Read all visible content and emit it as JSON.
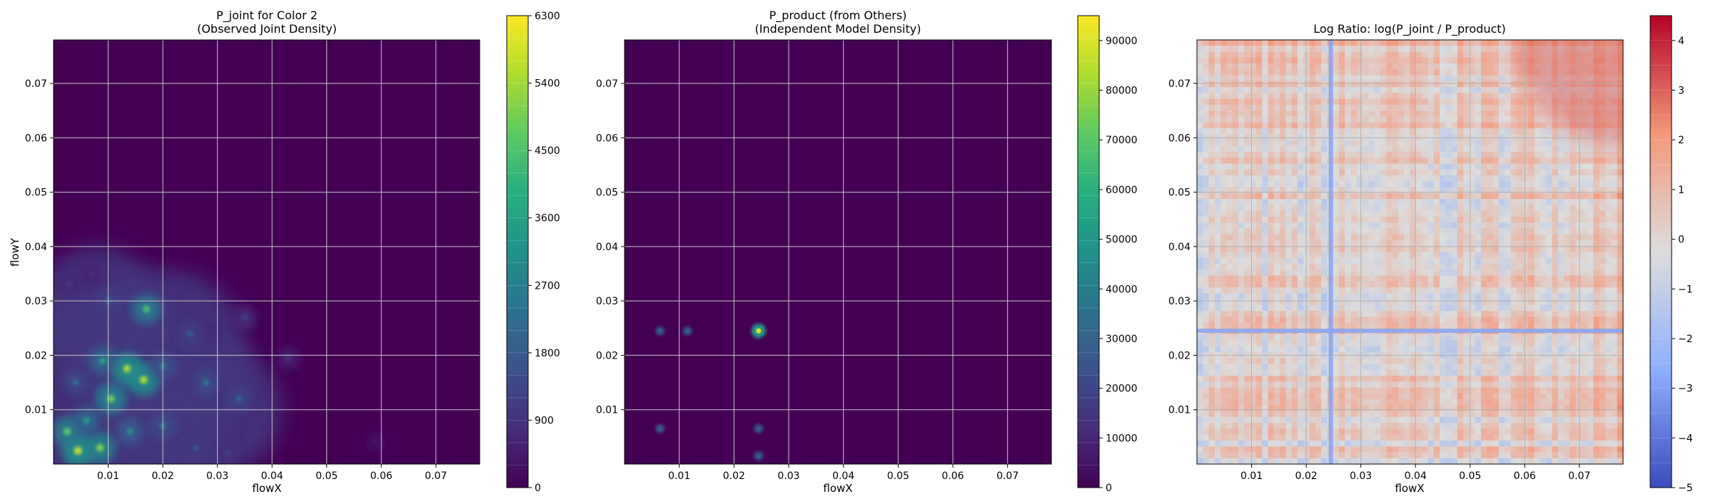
{
  "chart_data": [
    {
      "type": "heatmap",
      "title_line1": "P_joint for Color 2",
      "title_line2": "(Observed Joint Density)",
      "xlabel": "flowX",
      "ylabel": "flowY",
      "xlim": [
        0,
        0.078
      ],
      "ylim": [
        0,
        0.078
      ],
      "x_ticks": [
        0.01,
        0.02,
        0.03,
        0.04,
        0.05,
        0.06,
        0.07
      ],
      "x_tick_labels": [
        "0.01",
        "0.02",
        "0.03",
        "0.04",
        "0.05",
        "0.06",
        "0.07"
      ],
      "y_ticks": [
        0.01,
        0.02,
        0.03,
        0.04,
        0.05,
        0.06,
        0.07
      ],
      "y_tick_labels": [
        "0.01",
        "0.02",
        "0.03",
        "0.04",
        "0.05",
        "0.06",
        "0.07"
      ],
      "grid": true,
      "colormap": "viridis",
      "colorbar_range": [
        0,
        6300
      ],
      "colorbar_ticks": [
        0,
        900,
        1800,
        2700,
        3600,
        4500,
        5400,
        6300
      ],
      "colorbar_tick_labels": [
        "0",
        "900",
        "1800",
        "2700",
        "3600",
        "4500",
        "5400",
        "6300"
      ],
      "hotspots": [
        {
          "x": 0.0045,
          "y": 0.0025,
          "value": 5800
        },
        {
          "x": 0.0085,
          "y": 0.003,
          "value": 5000
        },
        {
          "x": 0.0025,
          "y": 0.006,
          "value": 4700
        },
        {
          "x": 0.0135,
          "y": 0.0175,
          "value": 5600
        },
        {
          "x": 0.0165,
          "y": 0.0155,
          "value": 5400
        },
        {
          "x": 0.0105,
          "y": 0.012,
          "value": 4900
        },
        {
          "x": 0.017,
          "y": 0.0285,
          "value": 4400
        },
        {
          "x": 0.009,
          "y": 0.019,
          "value": 3700
        },
        {
          "x": 0.006,
          "y": 0.008,
          "value": 3600
        },
        {
          "x": 0.014,
          "y": 0.006,
          "value": 3200
        },
        {
          "x": 0.02,
          "y": 0.018,
          "value": 2800
        },
        {
          "x": 0.028,
          "y": 0.015,
          "value": 2500
        },
        {
          "x": 0.034,
          "y": 0.012,
          "value": 2300
        },
        {
          "x": 0.025,
          "y": 0.024,
          "value": 2000
        },
        {
          "x": 0.01,
          "y": 0.03,
          "value": 2100
        },
        {
          "x": 0.004,
          "y": 0.015,
          "value": 2400
        },
        {
          "x": 0.02,
          "y": 0.007,
          "value": 2600
        },
        {
          "x": 0.026,
          "y": 0.003,
          "value": 1800
        },
        {
          "x": 0.032,
          "y": 0.002,
          "value": 1500
        },
        {
          "x": 0.043,
          "y": 0.0195,
          "value": 1100
        },
        {
          "x": 0.035,
          "y": 0.027,
          "value": 1300
        },
        {
          "x": 0.007,
          "y": 0.035,
          "value": 1000
        },
        {
          "x": 0.003,
          "y": 0.033,
          "value": 1200
        },
        {
          "x": 0.059,
          "y": 0.004,
          "value": 500
        }
      ]
    },
    {
      "type": "heatmap",
      "title_line1": "P_product (from Others)",
      "title_line2": "(Independent Model Density)",
      "xlabel": "flowX",
      "ylabel": "",
      "xlim": [
        0,
        0.078
      ],
      "ylim": [
        0,
        0.078
      ],
      "x_ticks": [
        0.01,
        0.02,
        0.03,
        0.04,
        0.05,
        0.06,
        0.07
      ],
      "x_tick_labels": [
        "0.01",
        "0.02",
        "0.03",
        "0.04",
        "0.05",
        "0.06",
        "0.07"
      ],
      "y_ticks": [
        0.01,
        0.02,
        0.03,
        0.04,
        0.05,
        0.06,
        0.07
      ],
      "y_tick_labels": [
        "0.01",
        "0.02",
        "0.03",
        "0.04",
        "0.05",
        "0.06",
        "0.07"
      ],
      "grid": true,
      "colormap": "viridis",
      "colorbar_range": [
        0,
        95000
      ],
      "colorbar_ticks": [
        0,
        10000,
        20000,
        30000,
        40000,
        50000,
        60000,
        70000,
        80000,
        90000
      ],
      "colorbar_tick_labels": [
        "0",
        "10000",
        "20000",
        "30000",
        "40000",
        "50000",
        "60000",
        "70000",
        "80000",
        "90000"
      ],
      "peak": {
        "x": 0.0245,
        "y": 0.0245,
        "value": 90000
      },
      "ridge_value": 22000
    },
    {
      "type": "heatmap",
      "title_line1": "Log Ratio: log(P_joint / P_product)",
      "title_line2": "",
      "xlabel": "flowX",
      "ylabel": "",
      "xlim": [
        0,
        0.078
      ],
      "ylim": [
        0,
        0.078
      ],
      "x_ticks": [
        0.01,
        0.02,
        0.03,
        0.04,
        0.05,
        0.06,
        0.07
      ],
      "x_tick_labels": [
        "0.01",
        "0.02",
        "0.03",
        "0.04",
        "0.05",
        "0.06",
        "0.07"
      ],
      "y_ticks": [
        0.01,
        0.02,
        0.03,
        0.04,
        0.05,
        0.06,
        0.07
      ],
      "y_tick_labels": [
        "0.01",
        "0.02",
        "0.03",
        "0.04",
        "0.05",
        "0.06",
        "0.07"
      ],
      "grid": true,
      "colormap": "coolwarm",
      "colorbar_range": [
        -5,
        4.5
      ],
      "colorbar_ticks": [
        -5,
        -4,
        -3,
        -2,
        -1,
        0,
        1,
        2,
        3,
        4
      ],
      "colorbar_tick_labels": [
        "−5",
        "−4",
        "−3",
        "−2",
        "−1",
        "0",
        "1",
        "2",
        "3",
        "4"
      ],
      "strong_negative_lines": [
        0.0245
      ],
      "positive_corner": "top-right"
    }
  ]
}
